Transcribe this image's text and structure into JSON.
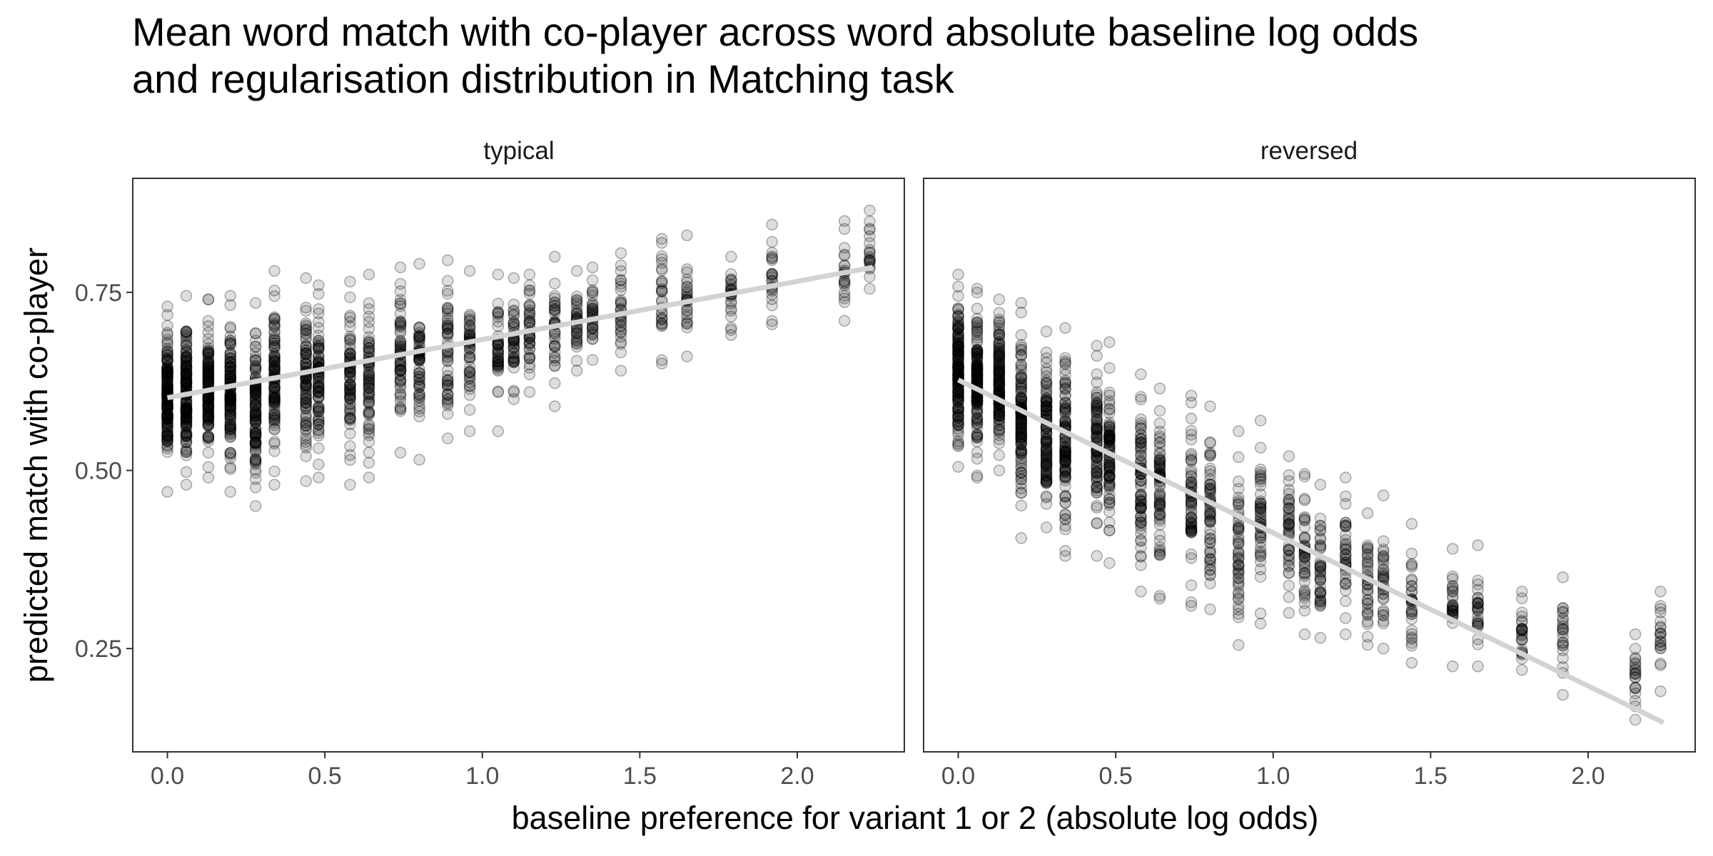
{
  "chart_data": {
    "type": "scatter",
    "title_lines": [
      "Mean word match with co-player across word absolute baseline log odds",
      "and regularisation distribution in Matching task"
    ],
    "xlabel": "baseline preference for variant 1 or 2 (absolute log odds)",
    "ylabel": "predicted match with co-player",
    "xlim": [
      -0.11,
      2.34
    ],
    "ylim": [
      0.105,
      0.91
    ],
    "x_ticks": [
      0.0,
      0.5,
      1.0,
      1.5,
      2.0
    ],
    "x_tick_labels": [
      "0.0",
      "0.5",
      "1.0",
      "1.5",
      "2.0"
    ],
    "y_ticks": [
      0.25,
      0.5,
      0.75
    ],
    "y_tick_labels": [
      "0.25",
      "0.50",
      "0.75"
    ],
    "grid": false,
    "point_color": "#000000",
    "point_opacity": 0.13,
    "fit_line_color": "#d3d3d3",
    "facets": [
      {
        "label": "typical",
        "trend_line": {
          "x": [
            0.0,
            2.24
          ],
          "y": [
            0.602,
            0.785
          ]
        },
        "columns": [
          {
            "x": 0.0,
            "min": 0.47,
            "max": 0.73
          },
          {
            "x": 0.06,
            "min": 0.48,
            "max": 0.745
          },
          {
            "x": 0.13,
            "min": 0.49,
            "max": 0.74
          },
          {
            "x": 0.2,
            "min": 0.47,
            "max": 0.745
          },
          {
            "x": 0.28,
            "min": 0.45,
            "max": 0.735
          },
          {
            "x": 0.34,
            "min": 0.48,
            "max": 0.78
          },
          {
            "x": 0.44,
            "min": 0.485,
            "max": 0.77
          },
          {
            "x": 0.48,
            "min": 0.49,
            "max": 0.76
          },
          {
            "x": 0.58,
            "min": 0.48,
            "max": 0.765
          },
          {
            "x": 0.64,
            "min": 0.49,
            "max": 0.775
          },
          {
            "x": 0.74,
            "min": 0.525,
            "max": 0.785
          },
          {
            "x": 0.8,
            "min": 0.515,
            "max": 0.79
          },
          {
            "x": 0.89,
            "min": 0.545,
            "max": 0.795
          },
          {
            "x": 0.96,
            "min": 0.555,
            "max": 0.78
          },
          {
            "x": 1.05,
            "min": 0.555,
            "max": 0.775
          },
          {
            "x": 1.1,
            "min": 0.6,
            "max": 0.77
          },
          {
            "x": 1.15,
            "min": 0.61,
            "max": 0.775
          },
          {
            "x": 1.23,
            "min": 0.59,
            "max": 0.8
          },
          {
            "x": 1.3,
            "min": 0.64,
            "max": 0.78
          },
          {
            "x": 1.35,
            "min": 0.655,
            "max": 0.785
          },
          {
            "x": 1.44,
            "min": 0.64,
            "max": 0.805
          },
          {
            "x": 1.57,
            "min": 0.65,
            "max": 0.825
          },
          {
            "x": 1.65,
            "min": 0.66,
            "max": 0.83
          },
          {
            "x": 1.79,
            "min": 0.69,
            "max": 0.8
          },
          {
            "x": 1.92,
            "min": 0.705,
            "max": 0.845
          },
          {
            "x": 2.15,
            "min": 0.71,
            "max": 0.85
          },
          {
            "x": 2.23,
            "min": 0.755,
            "max": 0.865
          }
        ]
      },
      {
        "label": "reversed",
        "trend_line": {
          "x": [
            0.0,
            2.24
          ],
          "y": [
            0.627,
            0.146
          ]
        },
        "columns": [
          {
            "x": 0.0,
            "min": 0.505,
            "max": 0.775
          },
          {
            "x": 0.06,
            "min": 0.49,
            "max": 0.755
          },
          {
            "x": 0.13,
            "min": 0.5,
            "max": 0.74
          },
          {
            "x": 0.2,
            "min": 0.405,
            "max": 0.735
          },
          {
            "x": 0.28,
            "min": 0.42,
            "max": 0.695
          },
          {
            "x": 0.34,
            "min": 0.38,
            "max": 0.7
          },
          {
            "x": 0.44,
            "min": 0.38,
            "max": 0.675
          },
          {
            "x": 0.48,
            "min": 0.37,
            "max": 0.68
          },
          {
            "x": 0.58,
            "min": 0.33,
            "max": 0.635
          },
          {
            "x": 0.64,
            "min": 0.32,
            "max": 0.615
          },
          {
            "x": 0.74,
            "min": 0.31,
            "max": 0.605
          },
          {
            "x": 0.8,
            "min": 0.305,
            "max": 0.59
          },
          {
            "x": 0.89,
            "min": 0.255,
            "max": 0.555
          },
          {
            "x": 0.96,
            "min": 0.285,
            "max": 0.57
          },
          {
            "x": 1.05,
            "min": 0.3,
            "max": 0.52
          },
          {
            "x": 1.1,
            "min": 0.27,
            "max": 0.495
          },
          {
            "x": 1.15,
            "min": 0.265,
            "max": 0.48
          },
          {
            "x": 1.23,
            "min": 0.27,
            "max": 0.49
          },
          {
            "x": 1.3,
            "min": 0.255,
            "max": 0.44
          },
          {
            "x": 1.35,
            "min": 0.25,
            "max": 0.465
          },
          {
            "x": 1.44,
            "min": 0.23,
            "max": 0.425
          },
          {
            "x": 1.57,
            "min": 0.225,
            "max": 0.39
          },
          {
            "x": 1.65,
            "min": 0.225,
            "max": 0.395
          },
          {
            "x": 1.79,
            "min": 0.22,
            "max": 0.33
          },
          {
            "x": 1.92,
            "min": 0.185,
            "max": 0.35
          },
          {
            "x": 2.15,
            "min": 0.15,
            "max": 0.27
          },
          {
            "x": 2.23,
            "min": 0.19,
            "max": 0.33
          }
        ]
      }
    ]
  }
}
